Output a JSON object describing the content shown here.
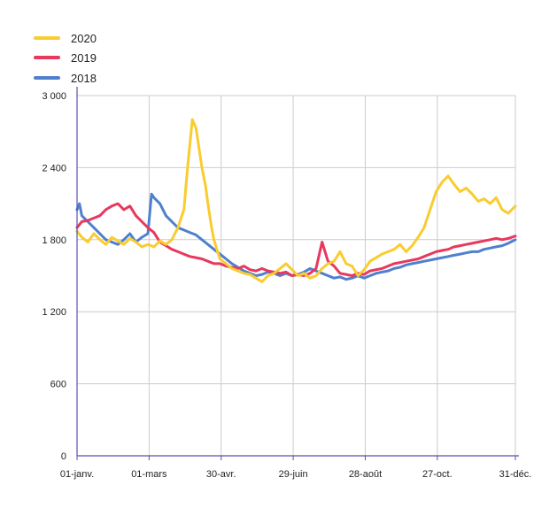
{
  "chart_data": {
    "type": "line",
    "title": "",
    "xlabel": "",
    "ylabel": "",
    "ylim": [
      0,
      3000
    ],
    "yticks": [
      0,
      600,
      1200,
      1800,
      2400,
      3000
    ],
    "ytick_labels": [
      "0",
      "600",
      "1 200",
      "1 800",
      "2 400",
      "3 000"
    ],
    "xlim": [
      1,
      366
    ],
    "xticks": [
      1,
      61,
      121,
      181,
      241,
      301,
      366
    ],
    "xtick_labels": [
      "01-janv.",
      "01-mars",
      "30-avr.",
      "29-juin",
      "28-août",
      "27-oct.",
      "31-déc."
    ],
    "grid": true,
    "legend_position": "top-left",
    "series": [
      {
        "name": "2020",
        "color": "#f9cc2f",
        "points": [
          [
            1,
            1870
          ],
          [
            5,
            1820
          ],
          [
            10,
            1780
          ],
          [
            15,
            1850
          ],
          [
            20,
            1800
          ],
          [
            25,
            1760
          ],
          [
            30,
            1820
          ],
          [
            35,
            1790
          ],
          [
            40,
            1760
          ],
          [
            45,
            1810
          ],
          [
            50,
            1780
          ],
          [
            55,
            1740
          ],
          [
            60,
            1760
          ],
          [
            65,
            1740
          ],
          [
            70,
            1790
          ],
          [
            75,
            1760
          ],
          [
            80,
            1800
          ],
          [
            85,
            1900
          ],
          [
            90,
            2050
          ],
          [
            93,
            2400
          ],
          [
            95,
            2600
          ],
          [
            97,
            2800
          ],
          [
            100,
            2730
          ],
          [
            102,
            2600
          ],
          [
            105,
            2400
          ],
          [
            108,
            2250
          ],
          [
            110,
            2100
          ],
          [
            113,
            1900
          ],
          [
            115,
            1800
          ],
          [
            118,
            1700
          ],
          [
            120,
            1640
          ],
          [
            125,
            1600
          ],
          [
            130,
            1560
          ],
          [
            135,
            1540
          ],
          [
            140,
            1520
          ],
          [
            145,
            1510
          ],
          [
            150,
            1480
          ],
          [
            155,
            1450
          ],
          [
            160,
            1500
          ],
          [
            165,
            1520
          ],
          [
            170,
            1560
          ],
          [
            175,
            1600
          ],
          [
            180,
            1550
          ],
          [
            185,
            1500
          ],
          [
            190,
            1520
          ],
          [
            195,
            1480
          ],
          [
            200,
            1500
          ],
          [
            205,
            1560
          ],
          [
            210,
            1600
          ],
          [
            215,
            1620
          ],
          [
            220,
            1700
          ],
          [
            225,
            1600
          ],
          [
            230,
            1580
          ],
          [
            235,
            1500
          ],
          [
            240,
            1550
          ],
          [
            245,
            1620
          ],
          [
            250,
            1650
          ],
          [
            255,
            1680
          ],
          [
            260,
            1700
          ],
          [
            265,
            1720
          ],
          [
            270,
            1760
          ],
          [
            275,
            1700
          ],
          [
            280,
            1750
          ],
          [
            285,
            1820
          ],
          [
            290,
            1900
          ],
          [
            295,
            2050
          ],
          [
            300,
            2200
          ],
          [
            305,
            2280
          ],
          [
            310,
            2330
          ],
          [
            315,
            2260
          ],
          [
            320,
            2200
          ],
          [
            325,
            2230
          ],
          [
            330,
            2180
          ],
          [
            335,
            2120
          ],
          [
            340,
            2140
          ],
          [
            345,
            2100
          ],
          [
            350,
            2150
          ],
          [
            355,
            2050
          ],
          [
            360,
            2020
          ],
          [
            366,
            2080
          ]
        ]
      },
      {
        "name": "2019",
        "color": "#e8385e",
        "points": [
          [
            1,
            1900
          ],
          [
            5,
            1950
          ],
          [
            10,
            1960
          ],
          [
            15,
            1980
          ],
          [
            20,
            2000
          ],
          [
            25,
            2050
          ],
          [
            30,
            2080
          ],
          [
            35,
            2100
          ],
          [
            40,
            2050
          ],
          [
            45,
            2080
          ],
          [
            50,
            2000
          ],
          [
            55,
            1950
          ],
          [
            60,
            1900
          ],
          [
            65,
            1860
          ],
          [
            70,
            1780
          ],
          [
            75,
            1750
          ],
          [
            80,
            1720
          ],
          [
            85,
            1700
          ],
          [
            90,
            1680
          ],
          [
            95,
            1660
          ],
          [
            100,
            1650
          ],
          [
            105,
            1640
          ],
          [
            110,
            1620
          ],
          [
            115,
            1600
          ],
          [
            120,
            1600
          ],
          [
            125,
            1580
          ],
          [
            130,
            1570
          ],
          [
            135,
            1560
          ],
          [
            140,
            1580
          ],
          [
            145,
            1550
          ],
          [
            150,
            1540
          ],
          [
            155,
            1560
          ],
          [
            160,
            1540
          ],
          [
            165,
            1530
          ],
          [
            170,
            1520
          ],
          [
            175,
            1530
          ],
          [
            180,
            1500
          ],
          [
            185,
            1510
          ],
          [
            190,
            1500
          ],
          [
            195,
            1520
          ],
          [
            200,
            1560
          ],
          [
            205,
            1780
          ],
          [
            210,
            1620
          ],
          [
            215,
            1580
          ],
          [
            220,
            1520
          ],
          [
            225,
            1510
          ],
          [
            230,
            1500
          ],
          [
            235,
            1520
          ],
          [
            240,
            1510
          ],
          [
            245,
            1540
          ],
          [
            250,
            1550
          ],
          [
            255,
            1560
          ],
          [
            260,
            1580
          ],
          [
            265,
            1600
          ],
          [
            270,
            1610
          ],
          [
            275,
            1620
          ],
          [
            280,
            1630
          ],
          [
            285,
            1640
          ],
          [
            290,
            1660
          ],
          [
            295,
            1680
          ],
          [
            300,
            1700
          ],
          [
            305,
            1710
          ],
          [
            310,
            1720
          ],
          [
            315,
            1740
          ],
          [
            320,
            1750
          ],
          [
            325,
            1760
          ],
          [
            330,
            1770
          ],
          [
            335,
            1780
          ],
          [
            340,
            1790
          ],
          [
            345,
            1800
          ],
          [
            350,
            1810
          ],
          [
            355,
            1800
          ],
          [
            360,
            1810
          ],
          [
            366,
            1830
          ]
        ]
      },
      {
        "name": "2018",
        "color": "#4f80ce",
        "points": [
          [
            1,
            2050
          ],
          [
            3,
            2100
          ],
          [
            5,
            2000
          ],
          [
            10,
            1950
          ],
          [
            15,
            1900
          ],
          [
            20,
            1850
          ],
          [
            25,
            1800
          ],
          [
            30,
            1780
          ],
          [
            35,
            1760
          ],
          [
            40,
            1800
          ],
          [
            45,
            1850
          ],
          [
            50,
            1780
          ],
          [
            55,
            1820
          ],
          [
            60,
            1850
          ],
          [
            63,
            2180
          ],
          [
            65,
            2150
          ],
          [
            70,
            2100
          ],
          [
            75,
            2000
          ],
          [
            80,
            1950
          ],
          [
            85,
            1900
          ],
          [
            90,
            1880
          ],
          [
            95,
            1860
          ],
          [
            100,
            1840
          ],
          [
            105,
            1800
          ],
          [
            110,
            1760
          ],
          [
            115,
            1720
          ],
          [
            120,
            1680
          ],
          [
            125,
            1640
          ],
          [
            130,
            1600
          ],
          [
            135,
            1570
          ],
          [
            140,
            1540
          ],
          [
            145,
            1520
          ],
          [
            150,
            1500
          ],
          [
            155,
            1510
          ],
          [
            160,
            1530
          ],
          [
            165,
            1520
          ],
          [
            170,
            1500
          ],
          [
            175,
            1520
          ],
          [
            180,
            1500
          ],
          [
            185,
            1510
          ],
          [
            190,
            1530
          ],
          [
            195,
            1560
          ],
          [
            200,
            1540
          ],
          [
            205,
            1520
          ],
          [
            210,
            1500
          ],
          [
            215,
            1480
          ],
          [
            220,
            1490
          ],
          [
            225,
            1470
          ],
          [
            230,
            1480
          ],
          [
            235,
            1500
          ],
          [
            240,
            1480
          ],
          [
            245,
            1500
          ],
          [
            250,
            1520
          ],
          [
            255,
            1530
          ],
          [
            260,
            1540
          ],
          [
            265,
            1560
          ],
          [
            270,
            1570
          ],
          [
            275,
            1590
          ],
          [
            280,
            1600
          ],
          [
            285,
            1610
          ],
          [
            290,
            1620
          ],
          [
            295,
            1630
          ],
          [
            300,
            1640
          ],
          [
            305,
            1650
          ],
          [
            310,
            1660
          ],
          [
            315,
            1670
          ],
          [
            320,
            1680
          ],
          [
            325,
            1690
          ],
          [
            330,
            1700
          ],
          [
            335,
            1700
          ],
          [
            340,
            1720
          ],
          [
            345,
            1730
          ],
          [
            350,
            1740
          ],
          [
            355,
            1750
          ],
          [
            360,
            1770
          ],
          [
            366,
            1800
          ]
        ]
      }
    ]
  }
}
